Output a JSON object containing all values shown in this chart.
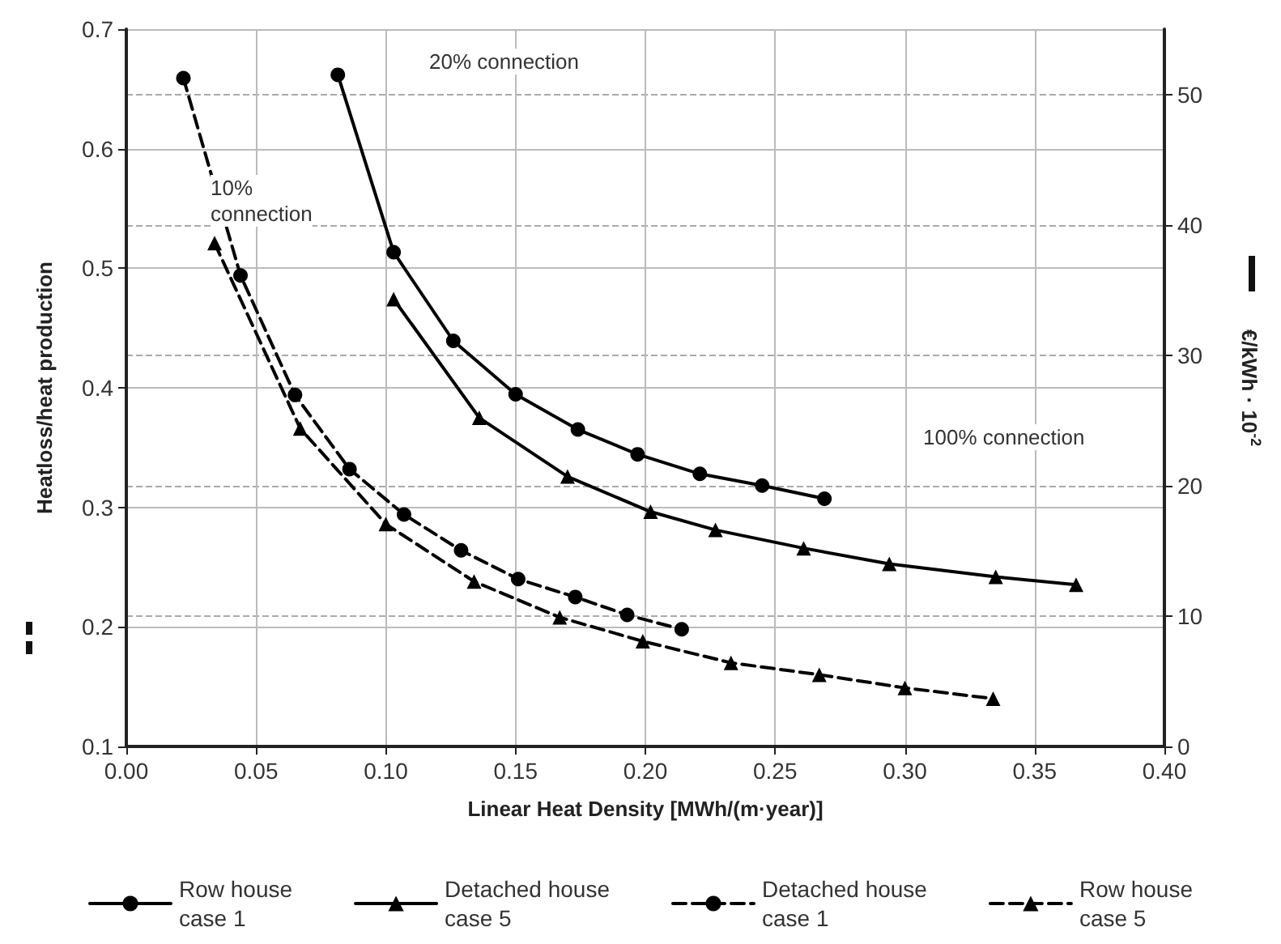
{
  "chart_data": {
    "type": "line",
    "xlabel": "Linear Heat Density [MWh/(m·year)]",
    "ylabel": "Heatloss/heat production",
    "y2label": "€/kWh · 10$^{-2}$",
    "xlim": [
      0,
      0.4
    ],
    "xticks": [
      {
        "value": 0,
        "label": "0.00"
      },
      {
        "value": 0.05,
        "label": "0.05"
      },
      {
        "value": 0.1,
        "label": "0.10"
      },
      {
        "value": 0.15,
        "label": "0.15"
      },
      {
        "value": 0.2,
        "label": "0.20"
      },
      {
        "value": 0.25,
        "label": "0.25"
      },
      {
        "value": 0.3,
        "label": "0.30"
      },
      {
        "value": 0.35,
        "label": "0.35"
      },
      {
        "value": 0.4,
        "label": "0.40"
      }
    ],
    "ylim": [
      0.1,
      0.7
    ],
    "yticks": [
      0.1,
      0.2,
      0.3,
      0.4,
      0.5,
      0.6,
      0.7
    ],
    "y2lim": [
      0,
      55
    ],
    "y2ticks": [
      0,
      10,
      20,
      30,
      40,
      50
    ],
    "grid": true,
    "legend": "bottom",
    "series": [
      {
        "name": "Row house\ncase 1",
        "color": "#000000",
        "axis": "y2",
        "marker": "circle",
        "line_style": "solid",
        "x": [
          0.0815,
          0.103,
          0.126,
          0.15,
          0.174,
          0.197,
          0.221,
          0.245,
          0.269
        ],
        "values": [
          51.5,
          37.9,
          31.1,
          27.0,
          24.3,
          22.4,
          20.9,
          20.0,
          19.0
        ]
      },
      {
        "name": "Detached house\ncase 5",
        "color": "#000000",
        "axis": "y2",
        "marker": "triangle",
        "line_style": "solid",
        "x": [
          0.103,
          0.136,
          0.17,
          0.202,
          0.227,
          0.261,
          0.294,
          0.335,
          0.366
        ],
        "values": [
          34.3,
          25.2,
          20.7,
          18.0,
          16.6,
          15.2,
          14.0,
          13.0,
          12.4
        ]
      },
      {
        "name": "Detached house\ncase 1",
        "color": "#000000",
        "marker": "circle",
        "line_style": "dashed",
        "x": [
          0.022,
          0.044,
          0.065,
          0.086,
          0.107,
          0.129,
          0.151,
          0.173,
          0.193,
          0.214
        ],
        "values": [
          0.659,
          0.494,
          0.394,
          0.332,
          0.294,
          0.264,
          0.24,
          0.225,
          0.21,
          0.198
        ]
      },
      {
        "name": "Row house\ncase 5",
        "color": "#000000",
        "marker": "triangle",
        "line_style": "dashed",
        "x": [
          0.034,
          0.067,
          0.1,
          0.134,
          0.167,
          0.199,
          0.233,
          0.267,
          0.3,
          0.334
        ],
        "values": [
          0.521,
          0.366,
          0.286,
          0.238,
          0.208,
          0.188,
          0.17,
          0.16,
          0.149,
          0.14
        ]
      }
    ],
    "annotations": [
      "20% connection",
      "10%\nconnection",
      "100% connection"
    ]
  }
}
